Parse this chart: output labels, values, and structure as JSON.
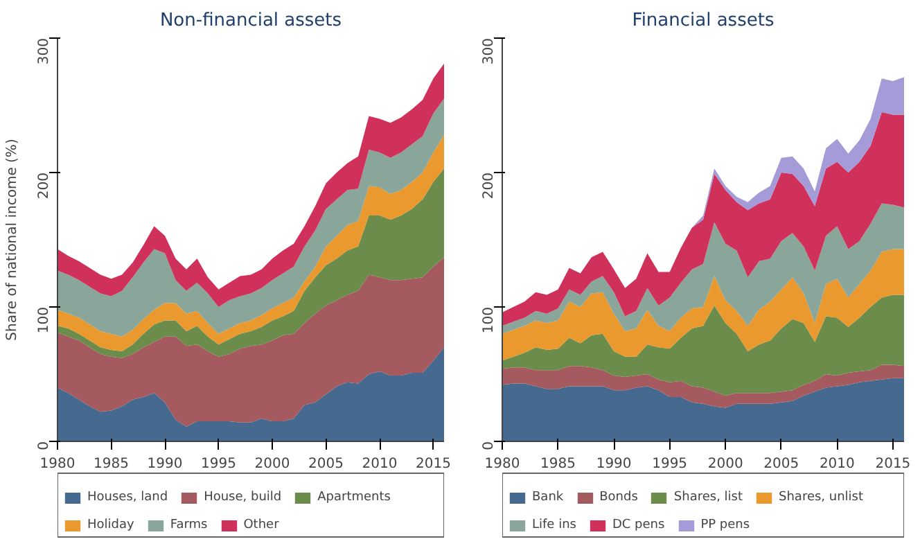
{
  "chart_data": [
    {
      "type": "area",
      "stacked": true,
      "title": "Non-financial assets",
      "ylabel": "Share of national income (%)",
      "legend": "bottom",
      "x": [
        1980,
        1981,
        1982,
        1983,
        1984,
        1985,
        1986,
        1987,
        1988,
        1989,
        1990,
        1991,
        1992,
        1993,
        1994,
        1995,
        1996,
        1997,
        1998,
        1999,
        2000,
        2001,
        2002,
        2003,
        2004,
        2005,
        2006,
        2007,
        2008,
        2009,
        2010,
        2011,
        2012,
        2013,
        2014,
        2015,
        2016
      ],
      "xlim": [
        1980,
        2016
      ],
      "xticks": [
        1980,
        1985,
        1990,
        1995,
        2000,
        2005,
        2010,
        2015
      ],
      "ylim": [
        0,
        300
      ],
      "yticks": [
        0,
        100,
        200,
        300
      ],
      "series": [
        {
          "name": "Houses, land",
          "color": "#466a8f",
          "values": [
            40,
            36,
            31,
            26,
            22,
            23,
            26,
            31,
            33,
            36,
            29,
            16,
            11,
            15,
            15,
            15,
            15,
            14,
            14,
            17,
            15,
            15,
            17,
            27,
            29,
            35,
            41,
            44,
            43,
            50,
            52,
            49,
            49,
            51,
            51,
            60,
            70
          ]
        },
        {
          "name": "House, build",
          "color": "#a45a5e",
          "values": [
            41,
            42,
            44,
            44,
            43,
            40,
            36,
            34,
            37,
            38,
            49,
            62,
            60,
            57,
            52,
            48,
            50,
            55,
            57,
            55,
            60,
            64,
            63,
            61,
            66,
            66,
            64,
            65,
            69,
            74,
            70,
            71,
            71,
            70,
            71,
            70,
            67
          ]
        },
        {
          "name": "Apartments",
          "color": "#6b8c4b",
          "values": [
            5,
            6,
            5,
            5,
            5,
            5,
            5,
            7,
            10,
            13,
            12,
            12,
            11,
            14,
            11,
            9,
            11,
            11,
            11,
            13,
            15,
            14,
            17,
            24,
            27,
            30,
            31,
            33,
            33,
            44,
            46,
            45,
            48,
            52,
            58,
            63,
            66
          ]
        },
        {
          "name": "Holiday",
          "color": "#e9992e",
          "values": [
            12,
            11,
            12,
            12,
            12,
            12,
            11,
            11,
            11,
            11,
            13,
            13,
            13,
            11,
            10,
            8,
            8,
            8,
            8,
            9,
            9,
            10,
            10,
            7,
            8,
            14,
            17,
            19,
            19,
            22,
            21,
            19,
            19,
            20,
            20,
            22,
            25
          ]
        },
        {
          "name": "Farms",
          "color": "#8aa69b",
          "values": [
            29,
            29,
            28,
            28,
            28,
            28,
            34,
            39,
            42,
            45,
            37,
            17,
            17,
            21,
            22,
            20,
            21,
            20,
            20,
            20,
            21,
            22,
            23,
            26,
            27,
            28,
            27,
            26,
            24,
            27,
            26,
            27,
            28,
            28,
            27,
            29,
            27
          ]
        },
        {
          "name": "Other",
          "color": "#d0315a",
          "values": [
            16,
            14,
            14,
            14,
            14,
            13,
            12,
            11,
            13,
            17,
            13,
            16,
            16,
            18,
            12,
            13,
            13,
            15,
            14,
            14,
            16,
            17,
            17,
            15,
            18,
            19,
            20,
            20,
            24,
            25,
            25,
            26,
            26,
            26,
            27,
            26,
            26
          ]
        }
      ]
    },
    {
      "type": "area",
      "stacked": true,
      "title": "Financial assets",
      "legend": "bottom",
      "x": [
        1980,
        1981,
        1982,
        1983,
        1984,
        1985,
        1986,
        1987,
        1988,
        1989,
        1990,
        1991,
        1992,
        1993,
        1994,
        1995,
        1996,
        1997,
        1998,
        1999,
        2000,
        2001,
        2002,
        2003,
        2004,
        2005,
        2006,
        2007,
        2008,
        2009,
        2010,
        2011,
        2012,
        2013,
        2014,
        2015,
        2016
      ],
      "xlim": [
        1980,
        2016
      ],
      "xticks": [
        1980,
        1985,
        1990,
        1995,
        2000,
        2005,
        2010,
        2015
      ],
      "ylim": [
        0,
        300
      ],
      "yticks": [
        0,
        100,
        200,
        300
      ],
      "series": [
        {
          "name": "Bank",
          "color": "#466a8f",
          "values": [
            42,
            43,
            43,
            41,
            39,
            39,
            41,
            41,
            41,
            41,
            38,
            38,
            40,
            41,
            38,
            33,
            33,
            29,
            28,
            26,
            25,
            28,
            28,
            28,
            28,
            29,
            30,
            34,
            37,
            40,
            41,
            42,
            44,
            45,
            46,
            47,
            47
          ]
        },
        {
          "name": "Bonds",
          "color": "#a45a5e",
          "values": [
            12,
            12,
            12,
            12,
            14,
            14,
            15,
            15,
            14,
            12,
            11,
            10,
            9,
            9,
            8,
            11,
            12,
            12,
            12,
            11,
            9,
            8,
            8,
            8,
            8,
            8,
            8,
            8,
            8,
            10,
            8,
            9,
            8,
            8,
            11,
            10,
            9
          ]
        },
        {
          "name": "Shares, list",
          "color": "#6b8c4b",
          "values": [
            6,
            8,
            11,
            17,
            15,
            16,
            21,
            17,
            24,
            27,
            18,
            15,
            14,
            22,
            24,
            25,
            32,
            43,
            46,
            64,
            54,
            44,
            31,
            36,
            39,
            47,
            53,
            46,
            29,
            43,
            43,
            34,
            40,
            47,
            50,
            52,
            53
          ]
        },
        {
          "name": "Shares, unlist",
          "color": "#e9992e",
          "values": [
            20,
            20,
            20,
            20,
            20,
            21,
            27,
            27,
            31,
            31,
            28,
            19,
            21,
            26,
            16,
            13,
            15,
            15,
            14,
            22,
            17,
            17,
            19,
            26,
            29,
            29,
            31,
            22,
            14,
            24,
            29,
            22,
            25,
            27,
            34,
            34,
            34
          ]
        },
        {
          "name": "Life ins",
          "color": "#8aa69b",
          "values": [
            6,
            6,
            6,
            7,
            7,
            9,
            9,
            9,
            9,
            12,
            16,
            11,
            13,
            16,
            15,
            25,
            26,
            29,
            32,
            40,
            42,
            45,
            36,
            36,
            32,
            36,
            33,
            35,
            39,
            36,
            39,
            36,
            32,
            35,
            36,
            33,
            31
          ]
        },
        {
          "name": "DC pens",
          "color": "#d0315a",
          "values": [
            10,
            11,
            12,
            14,
            14,
            14,
            16,
            16,
            18,
            18,
            17,
            21,
            24,
            26,
            25,
            19,
            26,
            31,
            33,
            36,
            40,
            36,
            50,
            43,
            44,
            51,
            44,
            45,
            48,
            50,
            48,
            57,
            59,
            58,
            68,
            67,
            69
          ]
        },
        {
          "name": "PP pens",
          "color": "#a59bd9",
          "values": [
            0,
            0,
            0,
            0,
            0,
            0,
            0,
            0,
            0,
            0,
            0,
            0,
            0,
            0,
            0,
            0,
            0,
            0,
            3,
            4,
            3,
            4,
            6,
            8,
            10,
            11,
            13,
            13,
            11,
            15,
            17,
            14,
            16,
            20,
            25,
            25,
            28
          ]
        }
      ]
    }
  ]
}
